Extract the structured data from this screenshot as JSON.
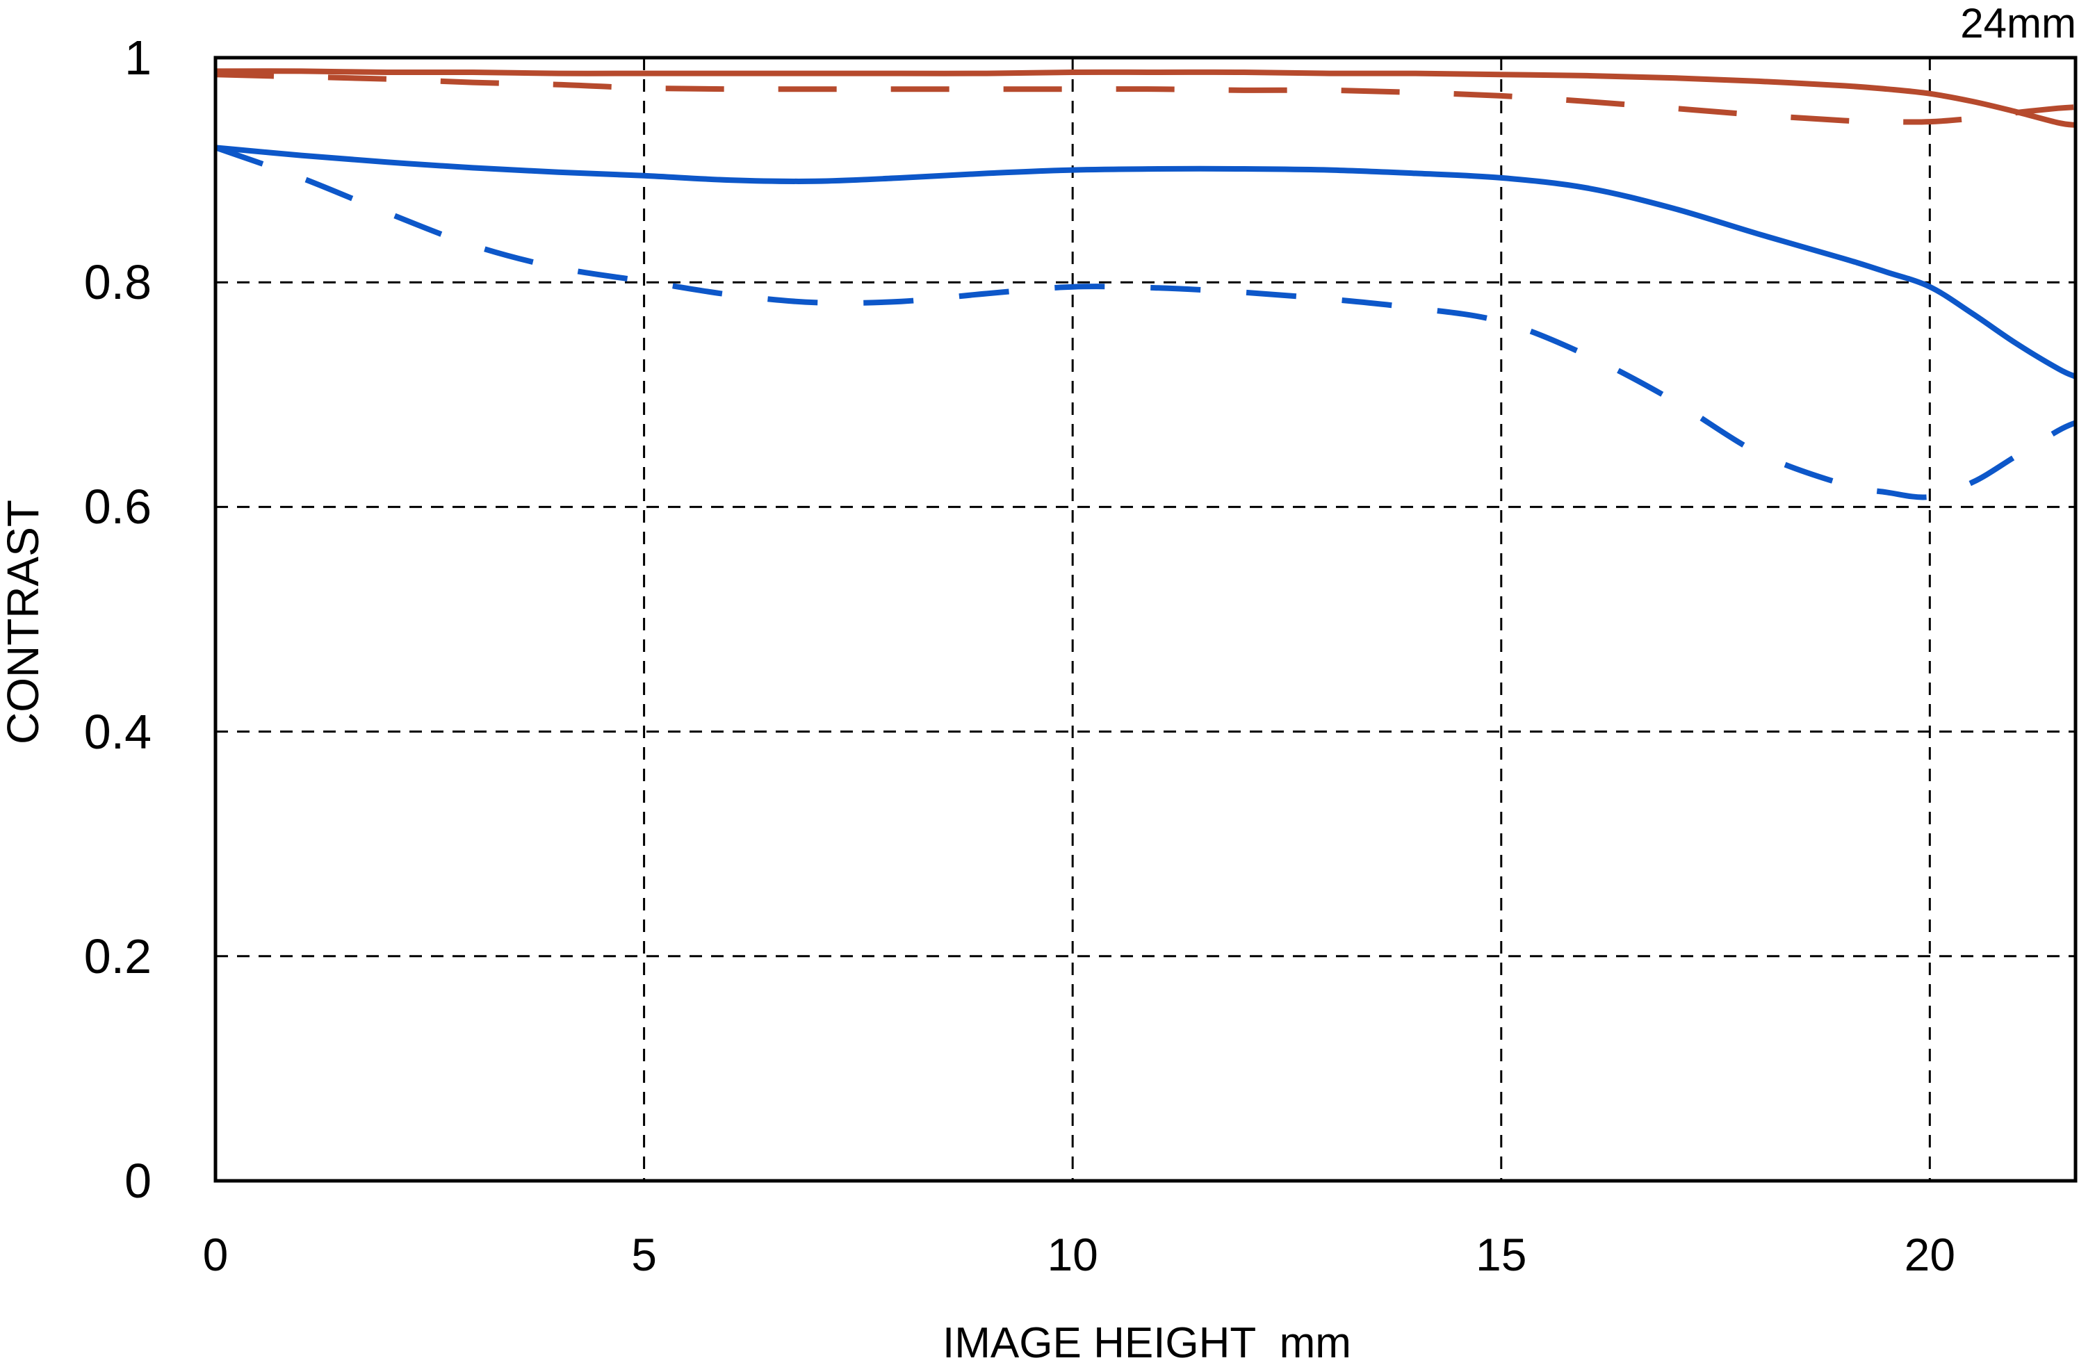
{
  "page": {
    "background": "#ffffff"
  },
  "chart_data": {
    "type": "line",
    "title": "24mm",
    "xlabel": "IMAGE HEIGHT  mm",
    "ylabel": "CONTRAST",
    "xlim": [
      0,
      21.7
    ],
    "ylim": [
      0,
      1
    ],
    "grid": "dashed-black",
    "legend": "none",
    "x_tick_values": [
      0,
      5,
      10,
      15,
      20
    ],
    "x_tick_labels": [
      "0",
      "5",
      "10",
      "15",
      "20"
    ],
    "y_tick_values": [
      0,
      0.2,
      0.4,
      0.6,
      0.8,
      1
    ],
    "y_tick_labels": [
      "0",
      "0.2",
      "0.4",
      "0.6",
      "0.8",
      "1"
    ],
    "x_gridlines": [
      5,
      10,
      15,
      20
    ],
    "y_gridlines": [
      0.2,
      0.4,
      0.6,
      0.8
    ],
    "colors": {
      "red": "#b64a2d",
      "blue": "#0d57c9",
      "axis": "#000000"
    },
    "x": [
      0,
      1,
      2,
      3,
      4,
      5,
      6,
      7,
      8,
      9,
      10,
      11,
      12,
      13,
      14,
      15,
      16,
      17,
      18,
      19,
      19.5,
      20,
      20.5,
      21,
      21.5,
      21.7
    ],
    "series": [
      {
        "name": "red-solid",
        "color": "#b64a2d",
        "style": "solid",
        "values": [
          0.988,
          0.988,
          0.987,
          0.987,
          0.986,
          0.986,
          0.986,
          0.986,
          0.986,
          0.986,
          0.987,
          0.987,
          0.987,
          0.986,
          0.986,
          0.985,
          0.984,
          0.982,
          0.979,
          0.975,
          0.972,
          0.968,
          0.961,
          0.952,
          0.942,
          0.94
        ]
      },
      {
        "name": "red-dashed",
        "color": "#b64a2d",
        "style": "dashed",
        "values": [
          0.985,
          0.983,
          0.981,
          0.978,
          0.976,
          0.973,
          0.972,
          0.972,
          0.972,
          0.972,
          0.972,
          0.972,
          0.971,
          0.971,
          0.969,
          0.966,
          0.961,
          0.955,
          0.949,
          0.944,
          0.943,
          0.943,
          0.946,
          0.951,
          0.955,
          0.956
        ]
      },
      {
        "name": "blue-solid",
        "color": "#0d57c9",
        "style": "solid",
        "values": [
          0.92,
          0.913,
          0.907,
          0.902,
          0.898,
          0.895,
          0.891,
          0.89,
          0.893,
          0.897,
          0.9,
          0.901,
          0.901,
          0.9,
          0.897,
          0.893,
          0.884,
          0.866,
          0.843,
          0.821,
          0.809,
          0.796,
          0.772,
          0.746,
          0.723,
          0.716
        ]
      },
      {
        "name": "blue-dashed",
        "color": "#0d57c9",
        "style": "dashed",
        "values": [
          0.92,
          0.893,
          0.862,
          0.833,
          0.813,
          0.801,
          0.789,
          0.782,
          0.783,
          0.79,
          0.796,
          0.795,
          0.791,
          0.785,
          0.777,
          0.765,
          0.735,
          0.695,
          0.648,
          0.62,
          0.613,
          0.609,
          0.622,
          0.645,
          0.668,
          0.675
        ]
      }
    ]
  }
}
